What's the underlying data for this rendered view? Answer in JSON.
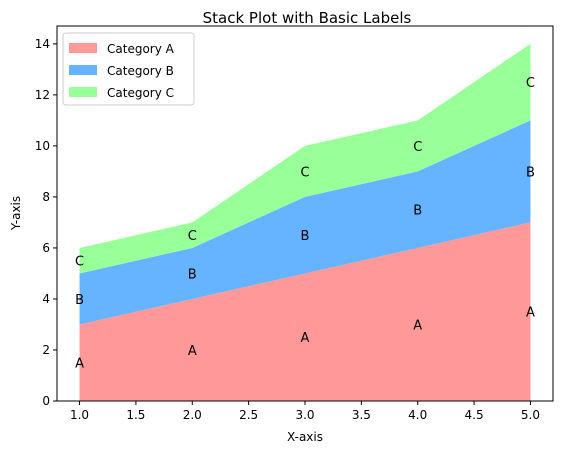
{
  "chart_data": {
    "type": "area",
    "stacked": true,
    "title": "Stack Plot with Basic Labels",
    "xlabel": "X-axis",
    "ylabel": "Y-axis",
    "x": [
      1,
      2,
      3,
      4,
      5
    ],
    "xlim": [
      0.8,
      5.2
    ],
    "ylim": [
      0,
      14.7
    ],
    "x_ticks": [
      1.0,
      1.5,
      2.0,
      2.5,
      3.0,
      3.5,
      4.0,
      4.5,
      5.0
    ],
    "x_tick_labels": [
      "1.0",
      "1.5",
      "2.0",
      "2.5",
      "3.0",
      "3.5",
      "4.0",
      "4.5",
      "5.0"
    ],
    "y_ticks": [
      0,
      2,
      4,
      6,
      8,
      10,
      12,
      14
    ],
    "y_tick_labels": [
      "0",
      "2",
      "4",
      "6",
      "8",
      "10",
      "12",
      "14"
    ],
    "grid": false,
    "legend_position": "top-left",
    "series": [
      {
        "name": "Category A",
        "values": [
          3,
          4,
          5,
          6,
          7
        ],
        "color": "#ff9999",
        "point_label": "A"
      },
      {
        "name": "Category B",
        "values": [
          2,
          2,
          3,
          3,
          4
        ],
        "color": "#66b3ff",
        "point_label": "B"
      },
      {
        "name": "Category C",
        "values": [
          1,
          1,
          2,
          2,
          3
        ],
        "color": "#99ff99",
        "point_label": "C"
      }
    ]
  }
}
